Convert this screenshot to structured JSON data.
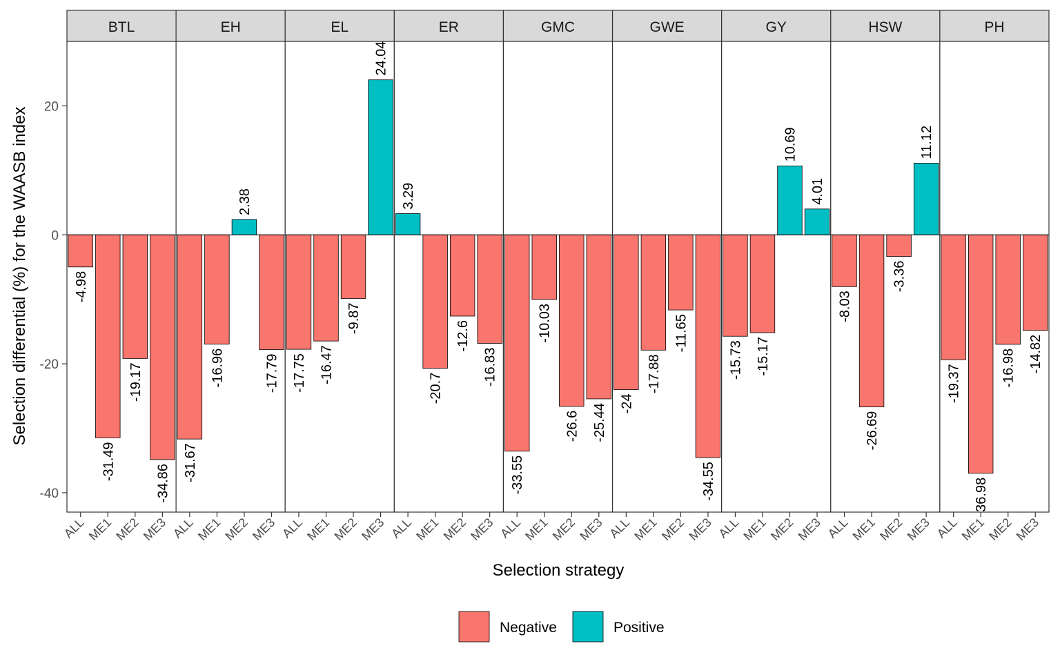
{
  "chart_data": {
    "type": "bar",
    "facets": [
      "BTL",
      "EH",
      "EL",
      "ER",
      "GMC",
      "GWE",
      "GY",
      "HSW",
      "PH"
    ],
    "categories": [
      "ALL",
      "ME1",
      "ME2",
      "ME3"
    ],
    "series": [
      {
        "facet": "BTL",
        "values": [
          -4.98,
          -31.49,
          -19.17,
          -34.86
        ],
        "labels": [
          "-4.98",
          "-31.49",
          "-19.17",
          "-34.86"
        ]
      },
      {
        "facet": "EH",
        "values": [
          -31.67,
          -16.96,
          2.38,
          -17.79
        ],
        "labels": [
          "-31.67",
          "-16.96",
          "2.38",
          "-17.79"
        ]
      },
      {
        "facet": "EL",
        "values": [
          -17.75,
          -16.47,
          -9.87,
          24.04
        ],
        "labels": [
          "-17.75",
          "-16.47",
          "-9.87",
          "24.04"
        ]
      },
      {
        "facet": "ER",
        "values": [
          3.29,
          -20.7,
          -12.6,
          -16.83
        ],
        "labels": [
          "3.29",
          "-20.7",
          "-12.6",
          "-16.83"
        ]
      },
      {
        "facet": "GMC",
        "values": [
          -33.55,
          -10.03,
          -26.6,
          -25.44
        ],
        "labels": [
          "-33.55",
          "-10.03",
          "-26.6",
          "-25.44"
        ]
      },
      {
        "facet": "GWE",
        "values": [
          -24,
          -17.88,
          -11.65,
          -34.55
        ],
        "labels": [
          "-24",
          "-17.88",
          "-11.65",
          "-34.55"
        ]
      },
      {
        "facet": "GY",
        "values": [
          -15.73,
          -15.17,
          10.69,
          4.01
        ],
        "labels": [
          "-15.73",
          "-15.17",
          "10.69",
          "4.01"
        ]
      },
      {
        "facet": "HSW",
        "values": [
          -8.03,
          -26.69,
          -3.36,
          11.12
        ],
        "labels": [
          "-8.03",
          "-26.69",
          "-3.36",
          "11.12"
        ]
      },
      {
        "facet": "PH",
        "values": [
          -19.37,
          -36.98,
          -16.98,
          -14.82
        ],
        "labels": [
          "-19.37",
          "-36.98",
          "-16.98",
          "-14.82"
        ]
      }
    ],
    "xlabel": "Selection strategy",
    "ylabel": "Selection differential (%) for the WAASB index",
    "ylim": [
      -43,
      30
    ],
    "yticks": [
      -40,
      -20,
      0,
      20
    ],
    "legend": {
      "placement": "bottom",
      "entries": [
        {
          "label": "Negative",
          "color": "#F8766D"
        },
        {
          "label": "Positive",
          "color": "#00BFC4"
        }
      ]
    },
    "colors": {
      "negative": "#F8766D",
      "positive": "#00BFC4",
      "strip": "#D9D9D9"
    }
  }
}
